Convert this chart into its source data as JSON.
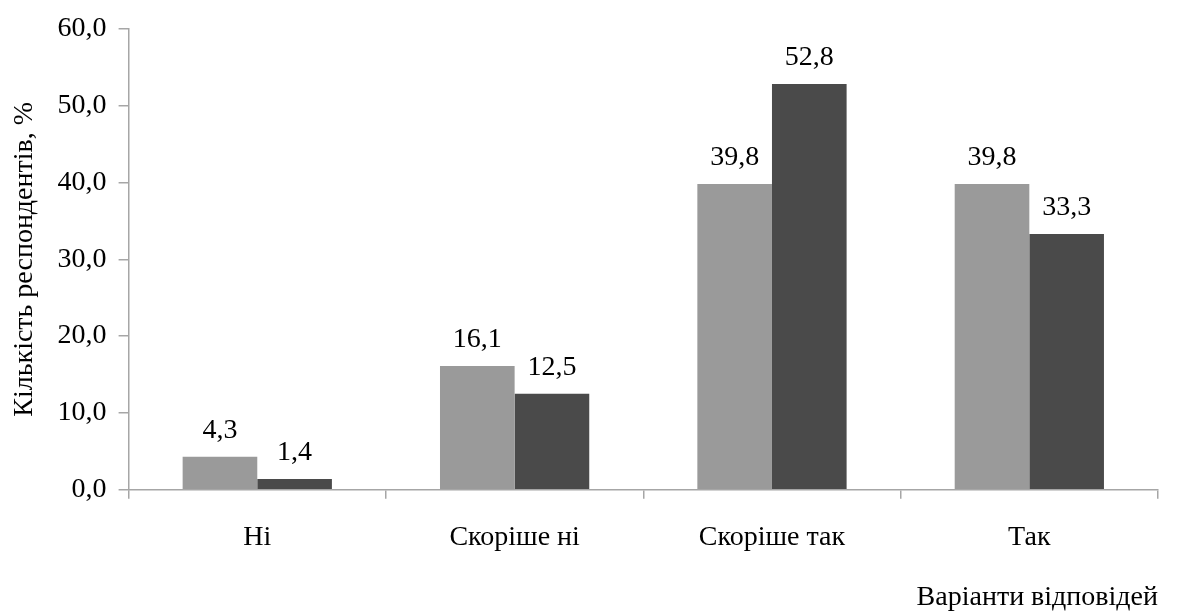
{
  "chart_data": {
    "type": "bar",
    "xlabel": "Варіанти відповідей",
    "ylabel": "Кількість респондентів, %",
    "categories": [
      "Ні",
      "Скоріше ні",
      "Скоріше так",
      "Так"
    ],
    "series": [
      {
        "color": "#9a9a9a",
        "values": [
          4.3,
          16.1,
          39.8,
          39.8
        ],
        "value_labels": [
          "4,3",
          "16,1",
          "39,8",
          "39,8"
        ]
      },
      {
        "color": "#4a4a4a",
        "values": [
          1.4,
          12.5,
          52.8,
          33.3
        ],
        "value_labels": [
          "1,4",
          "12,5",
          "52,8",
          "33,3"
        ]
      }
    ],
    "ylim": [
      0,
      60
    ],
    "yticks": [
      {
        "value": 0,
        "label": "0,0"
      },
      {
        "value": 10,
        "label": "10,0"
      },
      {
        "value": 20,
        "label": "20,0"
      },
      {
        "value": 30,
        "label": "30,0"
      },
      {
        "value": 40,
        "label": "40,0"
      },
      {
        "value": 50,
        "label": "50,0"
      },
      {
        "value": 60,
        "label": "60,0"
      }
    ],
    "grid": false,
    "legend": false
  }
}
